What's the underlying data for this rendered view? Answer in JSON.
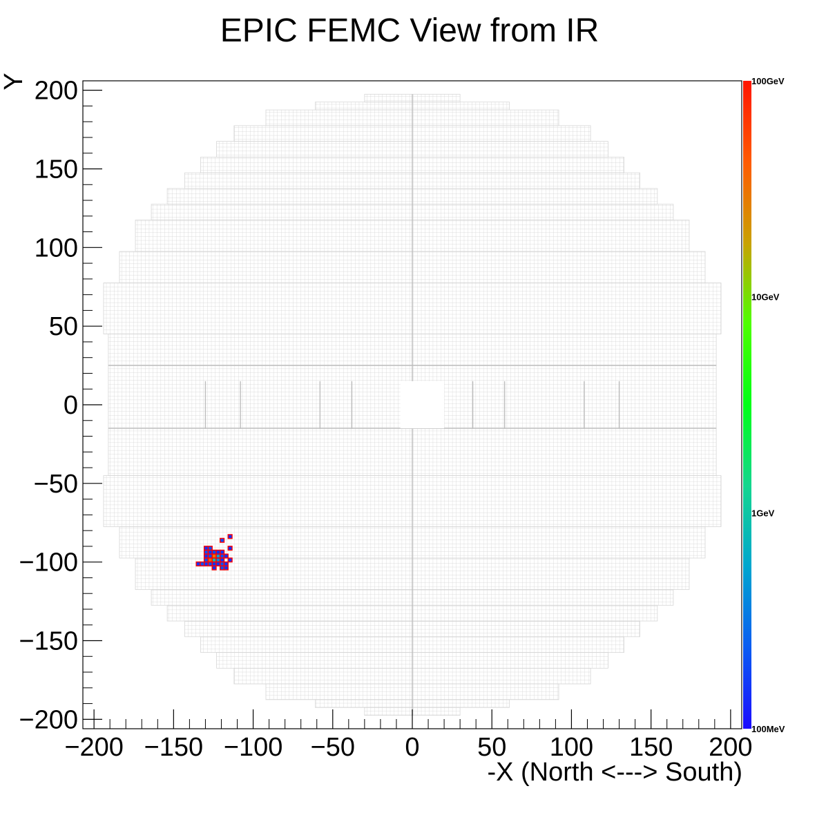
{
  "chart_data": {
    "type": "heatmap",
    "title": "EPIC FEMC View from IR",
    "xlabel": "-X (North <---> South)",
    "ylabel": "Y",
    "xlim": [
      -207,
      207
    ],
    "ylim": [
      -206,
      206
    ],
    "x_ticks": [
      -200,
      -150,
      -100,
      -50,
      0,
      50,
      100,
      150,
      200
    ],
    "y_ticks": [
      -200,
      -150,
      -100,
      -50,
      0,
      50,
      100,
      150,
      200
    ],
    "x_tick_labels": [
      "−200",
      "−150",
      "−100",
      "−50",
      "0",
      "50",
      "100",
      "150",
      "200"
    ],
    "y_tick_labels": [
      "−200",
      "−150",
      "−100",
      "−50",
      "0",
      "50",
      "100",
      "150",
      "200"
    ],
    "grid": false,
    "cell_size": 2.5,
    "beam_hole": {
      "x": [
        -7.5,
        20
      ],
      "y": [
        -15,
        15
      ]
    },
    "detector_outline_rows": [
      {
        "y": [
          197.5,
          192.5
        ],
        "x": [
          -30,
          30
        ]
      },
      {
        "y": [
          192.5,
          187.5
        ],
        "x": [
          -61,
          61
        ]
      },
      {
        "y": [
          187.5,
          177.5
        ],
        "x": [
          -92,
          92
        ]
      },
      {
        "y": [
          177.5,
          167.5
        ],
        "x": [
          -112,
          112
        ]
      },
      {
        "y": [
          167.5,
          157.5
        ],
        "x": [
          -123,
          123
        ]
      },
      {
        "y": [
          157.5,
          147.5
        ],
        "x": [
          -133,
          133
        ]
      },
      {
        "y": [
          147.5,
          137.5
        ],
        "x": [
          -143,
          143
        ]
      },
      {
        "y": [
          137.5,
          127.5
        ],
        "x": [
          -154,
          154
        ]
      },
      {
        "y": [
          127.5,
          117.5
        ],
        "x": [
          -164,
          164
        ]
      },
      {
        "y": [
          117.5,
          97.5
        ],
        "x": [
          -174,
          174
        ]
      },
      {
        "y": [
          97.5,
          77.5
        ],
        "x": [
          -184,
          184
        ]
      },
      {
        "y": [
          77.5,
          45
        ],
        "x": [
          -194,
          194
        ]
      },
      {
        "y": [
          45,
          -45
        ],
        "x": [
          -191,
          191
        ]
      },
      {
        "y": [
          -45,
          -77.5
        ],
        "x": [
          -194,
          194
        ]
      },
      {
        "y": [
          -77.5,
          -97.5
        ],
        "x": [
          -184,
          184
        ]
      },
      {
        "y": [
          -97.5,
          -117.5
        ],
        "x": [
          -174,
          174
        ]
      },
      {
        "y": [
          -117.5,
          -127.5
        ],
        "x": [
          -164,
          164
        ]
      },
      {
        "y": [
          -127.5,
          -137.5
        ],
        "x": [
          -154,
          154
        ]
      },
      {
        "y": [
          -137.5,
          -147.5
        ],
        "x": [
          -143,
          143
        ]
      },
      {
        "y": [
          -147.5,
          -157.5
        ],
        "x": [
          -133,
          133
        ]
      },
      {
        "y": [
          -157.5,
          -167.5
        ],
        "x": [
          -123,
          123
        ]
      },
      {
        "y": [
          -167.5,
          -177.5
        ],
        "x": [
          -112,
          112
        ]
      },
      {
        "y": [
          -177.5,
          -187.5
        ],
        "x": [
          -92,
          92
        ]
      },
      {
        "y": [
          -187.5,
          -192.5
        ],
        "x": [
          -61,
          61
        ]
      },
      {
        "y": [
          -192.5,
          -197.5
        ],
        "x": [
          -30,
          30
        ]
      }
    ],
    "hits": [
      {
        "x": -114.5,
        "y": -83.8,
        "energy_gev": 0.15
      },
      {
        "x": -119.5,
        "y": -86.2,
        "energy_gev": 0.2
      },
      {
        "x": -114.5,
        "y": -91.2,
        "energy_gev": 0.15
      },
      {
        "x": -129.5,
        "y": -91.2,
        "energy_gev": 0.15
      },
      {
        "x": -127.0,
        "y": -91.2,
        "energy_gev": 0.2
      },
      {
        "x": -129.5,
        "y": -93.7,
        "energy_gev": 0.2
      },
      {
        "x": -127.0,
        "y": -93.7,
        "energy_gev": 0.15
      },
      {
        "x": -124.5,
        "y": -93.7,
        "energy_gev": 0.2
      },
      {
        "x": -122.0,
        "y": -93.7,
        "energy_gev": 0.15
      },
      {
        "x": -119.5,
        "y": -93.7,
        "energy_gev": 0.15
      },
      {
        "x": -129.5,
        "y": -96.2,
        "energy_gev": 0.15
      },
      {
        "x": -127.0,
        "y": -96.2,
        "energy_gev": 0.2
      },
      {
        "x": -124.5,
        "y": -96.2,
        "energy_gev": 30
      },
      {
        "x": -122.0,
        "y": -96.2,
        "energy_gev": 0.5
      },
      {
        "x": -119.5,
        "y": -96.2,
        "energy_gev": 0.2
      },
      {
        "x": -117.0,
        "y": -96.2,
        "energy_gev": 0.15
      },
      {
        "x": -129.5,
        "y": -98.7,
        "energy_gev": 0.2
      },
      {
        "x": -127.0,
        "y": -98.7,
        "energy_gev": 35
      },
      {
        "x": -124.5,
        "y": -98.7,
        "energy_gev": 0.8
      },
      {
        "x": -122.0,
        "y": -98.7,
        "energy_gev": 0.4
      },
      {
        "x": -119.5,
        "y": -98.7,
        "energy_gev": 0.15
      },
      {
        "x": -114.5,
        "y": -98.7,
        "energy_gev": 0.15
      },
      {
        "x": -134.5,
        "y": -101.2,
        "energy_gev": 0.15
      },
      {
        "x": -132.0,
        "y": -101.2,
        "energy_gev": 0.2
      },
      {
        "x": -129.5,
        "y": -101.2,
        "energy_gev": 0.15
      },
      {
        "x": -127.0,
        "y": -101.2,
        "energy_gev": 0.2
      },
      {
        "x": -124.5,
        "y": -101.2,
        "energy_gev": 0.15
      },
      {
        "x": -122.0,
        "y": -101.2,
        "energy_gev": 0.15
      },
      {
        "x": -119.5,
        "y": -101.2,
        "energy_gev": 0.2
      },
      {
        "x": -117.0,
        "y": -101.2,
        "energy_gev": 0.15
      },
      {
        "x": -124.5,
        "y": -103.7,
        "energy_gev": 0.15
      },
      {
        "x": -119.5,
        "y": -103.7,
        "energy_gev": 0.2
      },
      {
        "x": -117.0,
        "y": -103.7,
        "energy_gev": 0.15
      }
    ],
    "colorbar": {
      "scale": "log",
      "min_gev": 0.1,
      "max_gev": 100,
      "labels": [
        "100GeV",
        "10GeV",
        "1GeV",
        "100MeV"
      ],
      "label_values_gev": [
        100,
        10,
        1,
        0.1
      ],
      "stops": [
        "#1b0cff",
        "#0a5cf2",
        "#00a6cf",
        "#14d68f",
        "#00ff17",
        "#4dff00",
        "#c9a100",
        "#ff5a00",
        "#ff1600"
      ]
    },
    "colors": {
      "cell_border": "#c8c8c8",
      "hit_border": "#ff0000",
      "frame": "#000000"
    }
  }
}
